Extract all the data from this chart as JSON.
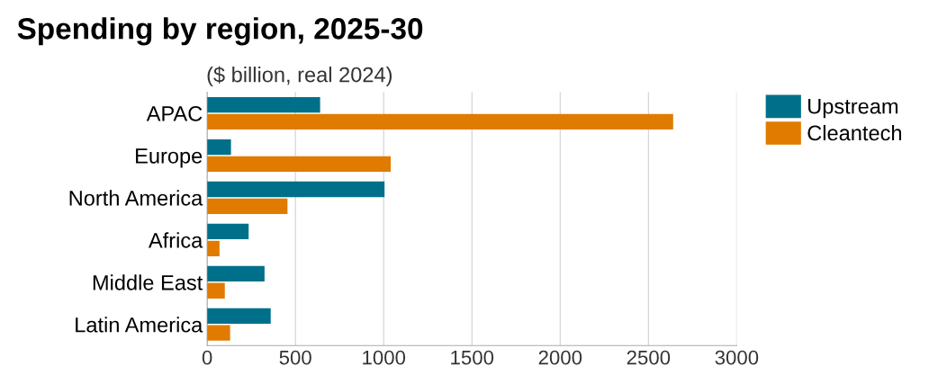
{
  "chart_data": {
    "type": "bar",
    "orientation": "horizontal",
    "title": "Spending by region, 2025-30",
    "subtitle": "($ billion, real 2024)",
    "categories": [
      "APAC",
      "Europe",
      "North America",
      "Africa",
      "Middle East",
      "Latin America"
    ],
    "series": [
      {
        "name": "Upstream",
        "color": "#00708a",
        "values": [
          640,
          135,
          1005,
          235,
          325,
          360
        ]
      },
      {
        "name": "Cleantech",
        "color": "#e07b00",
        "values": [
          2640,
          1040,
          455,
          70,
          100,
          130
        ]
      }
    ],
    "xlim": [
      0,
      3000
    ],
    "xticks": [
      0,
      500,
      1000,
      1500,
      2000,
      2500,
      3000
    ],
    "grid": "x",
    "legend": "top right"
  }
}
